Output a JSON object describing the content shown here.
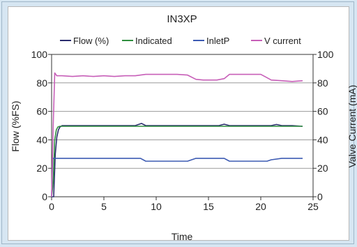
{
  "chart_data": {
    "type": "line",
    "title": "IN3XP",
    "xlabel": "Time",
    "ylabel": "Flow (%FS)",
    "y2label": "Valve Current (mA)",
    "xlim": [
      0,
      25
    ],
    "ylim": [
      0,
      100
    ],
    "y2lim": [
      0,
      100
    ],
    "xticks": [
      "0",
      "5",
      "10",
      "15",
      "20",
      "25"
    ],
    "yticks": [
      "0",
      "20",
      "40",
      "60",
      "80",
      "100"
    ],
    "y2ticks": [
      "0",
      "20",
      "40",
      "60",
      "80",
      "100"
    ],
    "grid": "horizontal",
    "legend_position": "top",
    "series": [
      {
        "name": "Flow (%)",
        "color": "#2b2d6e",
        "x": [
          0,
          0.2,
          0.35,
          0.5,
          0.65,
          0.8,
          1.0,
          2,
          4,
          6,
          8,
          8.6,
          9.0,
          9.5,
          10,
          12,
          14,
          15,
          16,
          16.5,
          17,
          18,
          20,
          21,
          21.5,
          22,
          23,
          24
        ],
        "y": [
          0,
          0,
          30,
          42,
          47,
          49,
          50,
          50,
          50,
          50,
          50,
          51.5,
          50,
          50,
          50,
          50,
          50,
          50,
          50,
          51,
          50,
          50,
          50,
          50,
          50.8,
          50,
          50,
          49.5
        ]
      },
      {
        "name": "Indicated",
        "color": "#2f8f3f",
        "x": [
          0,
          0.15,
          0.3,
          0.45,
          0.6,
          0.8,
          1.0,
          2,
          4,
          6,
          8,
          10,
          12,
          14,
          16,
          18,
          20,
          22,
          24
        ],
        "y": [
          0,
          10,
          40,
          47,
          49,
          49.5,
          49.5,
          49.5,
          49.5,
          49.5,
          49.5,
          49.5,
          49.5,
          49.5,
          49.5,
          49.5,
          49.5,
          49.5,
          49.5
        ]
      },
      {
        "name": "InletP",
        "color": "#3d5bb3",
        "x": [
          0,
          0.1,
          0.3,
          0.5,
          1,
          3,
          6,
          8.5,
          9,
          10,
          12,
          13,
          13.8,
          15,
          16,
          16.5,
          17,
          18,
          20,
          20.6,
          21,
          22,
          23,
          24
        ],
        "y": [
          0,
          27,
          27,
          27,
          27,
          27,
          27,
          27,
          25,
          25,
          25,
          25,
          27,
          27,
          27,
          27,
          25,
          25,
          25,
          25,
          26,
          27,
          27,
          27
        ]
      },
      {
        "name": "V current",
        "color": "#c75fb8",
        "x": [
          0,
          0.15,
          0.3,
          0.5,
          1,
          2,
          3,
          4,
          5,
          6,
          7,
          8,
          9,
          10,
          11,
          12,
          13,
          13.8,
          14.5,
          15,
          15.8,
          16.5,
          17,
          18,
          19,
          20,
          20.5,
          21,
          22,
          23,
          24
        ],
        "y": [
          0,
          50,
          87,
          85,
          85,
          84.5,
          85,
          84.5,
          85,
          84.5,
          85,
          85,
          86,
          86,
          86,
          86,
          85.5,
          82.5,
          82,
          82,
          82,
          83,
          86,
          86,
          86,
          86,
          84,
          82,
          81.5,
          81,
          81.5
        ]
      }
    ]
  }
}
